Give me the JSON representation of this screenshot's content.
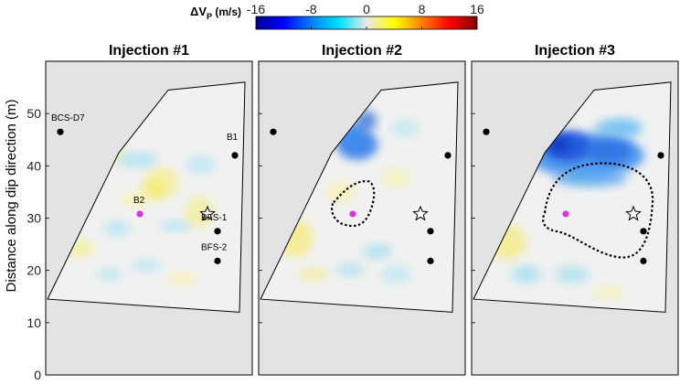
{
  "chart_data": {
    "type": "heatmap",
    "colorbar": {
      "title_main": "ΔV",
      "title_sub": "P",
      "title_unit": " (m/s)",
      "ticks": [
        "-16",
        "-8",
        "0",
        "8",
        "16"
      ],
      "range": [
        -16,
        16
      ],
      "colormap": [
        "#00008f",
        "#0000ff",
        "#0080ff",
        "#00e0ff",
        "#e8e8e8",
        "#ffff00",
        "#ff8000",
        "#ff0000",
        "#800000"
      ]
    },
    "ylabel": "Distance along dip direction (m)",
    "ylim": [
      0,
      60
    ],
    "yticks": [
      "0",
      "10",
      "20",
      "30",
      "40",
      "50"
    ],
    "background_color": "#e3e3e3",
    "outline": [
      [
        0,
        14.5
      ],
      [
        13,
        42.5
      ],
      [
        22,
        54.5
      ],
      [
        36,
        56
      ],
      [
        35,
        12
      ]
    ],
    "panels": [
      {
        "title": "Injection #1",
        "wells": [
          {
            "label": "BCS-D7",
            "y": 46.5
          },
          {
            "label": "B1",
            "y": 42
          },
          {
            "label": "B2",
            "y": 30.8
          },
          {
            "label": "BFS-1",
            "y": 27.5
          },
          {
            "label": "BFS-2",
            "y": 21.8
          }
        ],
        "star_y": 30.8,
        "anomaly_contour": false
      },
      {
        "title": "Injection #2",
        "wells": [],
        "star_y": 30.8,
        "anomaly_contour": true
      },
      {
        "title": "Injection #3",
        "wells": [],
        "star_y": 30.8,
        "anomaly_contour": true
      }
    ]
  }
}
